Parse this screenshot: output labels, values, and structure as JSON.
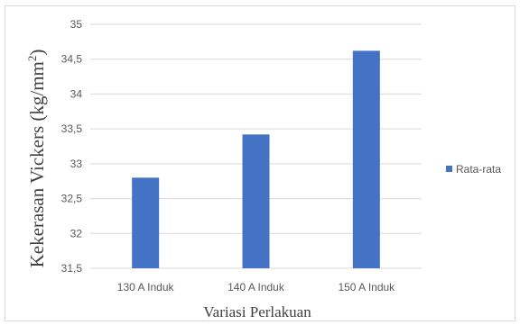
{
  "chart_data": {
    "type": "bar",
    "title": "",
    "categories": [
      "130 A Induk",
      "140 A Induk",
      "150 A Induk"
    ],
    "series": [
      {
        "name": "Rata-rata",
        "values": [
          32.8,
          33.42,
          34.62
        ],
        "color": "#4472c4"
      }
    ],
    "ylim": [
      31.5,
      35
    ],
    "yticks": [
      31.5,
      32,
      32.5,
      33,
      33.5,
      34,
      34.5,
      35
    ],
    "ytick_labels": [
      "31,5",
      "32",
      "32,5",
      "33",
      "33,5",
      "34",
      "34,5",
      "35"
    ],
    "ylabel": "Kekerasan Vickers (kg/mm",
    "ylabel_sup": "2",
    "ylabel_end": ")",
    "xlabel": "Variasi Perlakuan",
    "grid": true,
    "legend_position": "right"
  }
}
